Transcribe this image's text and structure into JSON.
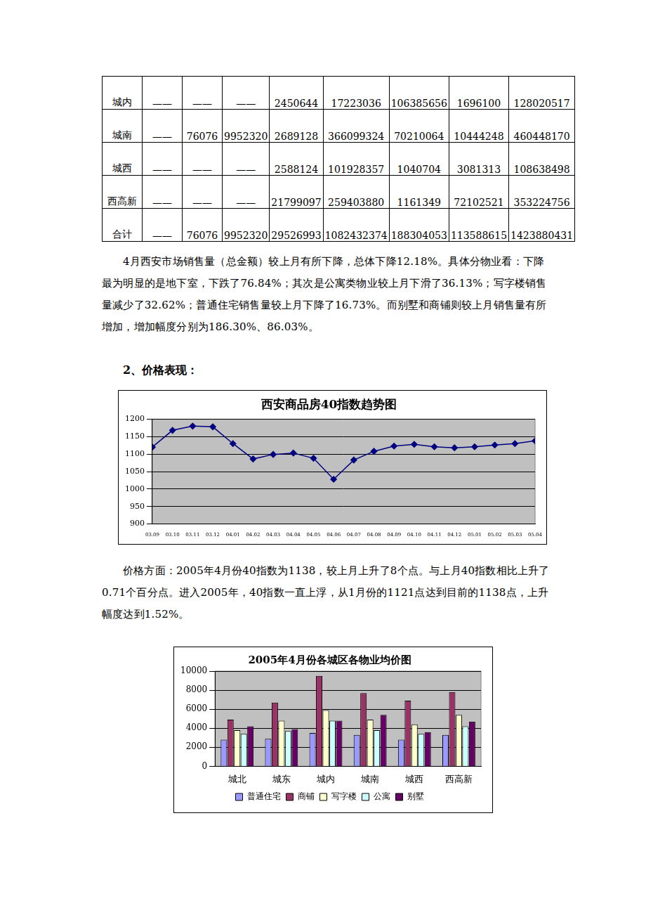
{
  "table": {
    "rows": [
      [
        "城内",
        "——",
        "——",
        "——",
        "2450644",
        "17223036",
        "106385656",
        "1696100",
        "128020517"
      ],
      [
        "城南",
        "——",
        "76076",
        "9952320",
        "2689128",
        "366099324",
        "70210064",
        "10444248",
        "460448170"
      ],
      [
        "城西",
        "——",
        "——",
        "——",
        "2588124",
        "101928357",
        "1040704",
        "3081313",
        "108638498"
      ],
      [
        "西高新",
        "——",
        "——",
        "——",
        "21799097",
        "259403880",
        "1161349",
        "72102521",
        "353224756"
      ],
      [
        "合计",
        "——",
        "76076",
        "9952320",
        "29526993",
        "1082432374",
        "188304053",
        "113588615",
        "1423880431"
      ]
    ]
  },
  "paragraph_1": "4月西安市场销售量（总金额）较上月有所下降，总体下降12.18%。具体分物业看：下降最为明显的是地下室，下跌了76.84%；其次是公寓类物业较上月下滑了36.13%；写字楼销售量减少了32.62%；普通住宅销售量较上月下降了16.73%。而别墅和商铺则较上月销售量有所增加，增加幅度分别为186.30%、86.03%。",
  "heading": "2、价格表现：",
  "paragraph_2": "价格方面：2005年4月份40指数为1138，较上月上升了8个点。与上月40指数相比上升了0.71个百分点。进入2005年，40指数一直上浮，从1月份的1121点达到目前的1138点，上升幅度达到1.52%。",
  "chart_data": [
    {
      "type": "line",
      "title": "西安商品房40指数趋势图",
      "categories": [
        "03.09",
        "03.10",
        "03.11",
        "03.12",
        "04.01",
        "04.02",
        "04.03",
        "04.04",
        "04.05",
        "04.06",
        "04.07",
        "04.08",
        "04.09",
        "04.10",
        "04.11",
        "04.12",
        "05.01",
        "05.02",
        "05.03",
        "05.04"
      ],
      "values": [
        1120,
        1168,
        1180,
        1178,
        1130,
        1086,
        1099,
        1103,
        1088,
        1028,
        1083,
        1108,
        1123,
        1128,
        1121,
        1118,
        1121,
        1126,
        1130,
        1138
      ],
      "color": "#000080",
      "marker": "diamond",
      "ylim": [
        900,
        1200
      ],
      "yticks": [
        900,
        950,
        1000,
        1050,
        1100,
        1150,
        1200
      ],
      "grid": true
    },
    {
      "type": "bar",
      "title": "2005年4月份各城区各物业均价图",
      "categories": [
        "城北",
        "城东",
        "城内",
        "城南",
        "城西",
        "西高新"
      ],
      "series": [
        {
          "name": "普通住宅",
          "color": "#9999ff",
          "values": [
            2800,
            2900,
            3500,
            3300,
            2800,
            3300
          ]
        },
        {
          "name": "商铺",
          "color": "#993366",
          "values": [
            4900,
            6700,
            9500,
            7700,
            6900,
            7800
          ]
        },
        {
          "name": "写字楼",
          "color": "#ffffcc",
          "values": [
            3800,
            4800,
            5900,
            4900,
            4400,
            5400
          ]
        },
        {
          "name": "公寓",
          "color": "#ccffff",
          "values": [
            3400,
            3700,
            4800,
            3800,
            3400,
            4200
          ]
        },
        {
          "name": "别墅",
          "color": "#660066",
          "values": [
            4200,
            3900,
            4800,
            5400,
            3600,
            4700
          ]
        }
      ],
      "ylim": [
        0,
        10000
      ],
      "yticks": [
        0,
        2000,
        4000,
        6000,
        8000,
        10000
      ],
      "grid": true,
      "legend": "bottom"
    }
  ]
}
